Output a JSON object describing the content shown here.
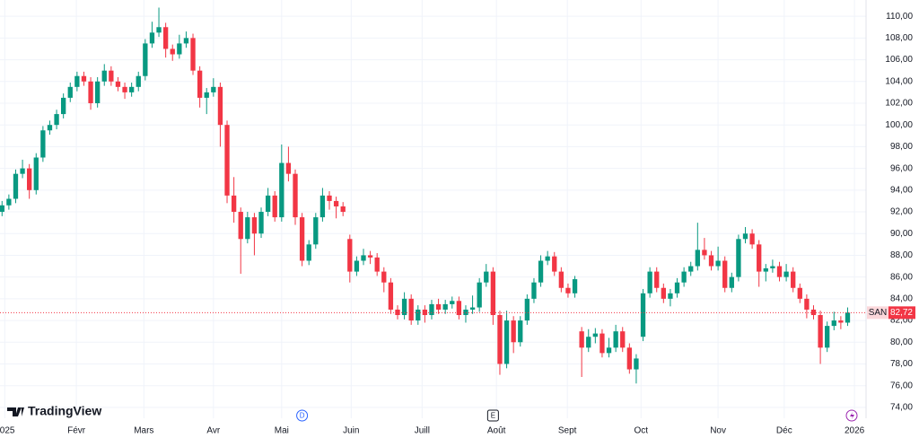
{
  "chart_data": {
    "type": "candlestick",
    "symbol": "SAN",
    "last_price": 82.72,
    "last_price_label": "82,72",
    "up_color": "#089981",
    "down_color": "#f23645",
    "grid": true,
    "xlim": [
      -0.3,
      126.7
    ],
    "ylim": [
      73.0,
      111.5
    ],
    "yticks": [
      {
        "value": 74,
        "label": "74,00"
      },
      {
        "value": 76,
        "label": "76,00"
      },
      {
        "value": 78,
        "label": "78,00"
      },
      {
        "value": 80,
        "label": "80,00"
      },
      {
        "value": 82,
        "label": "82,00"
      },
      {
        "value": 84,
        "label": "84,00"
      },
      {
        "value": 86,
        "label": "86,00"
      },
      {
        "value": 88,
        "label": "88,00"
      },
      {
        "value": 90,
        "label": "90,00"
      },
      {
        "value": 92,
        "label": "92,00"
      },
      {
        "value": 94,
        "label": "94,00"
      },
      {
        "value": 96,
        "label": "96,00"
      },
      {
        "value": 98,
        "label": "98,00"
      },
      {
        "value": 100,
        "label": "100,00"
      },
      {
        "value": 102,
        "label": "102,00"
      },
      {
        "value": 104,
        "label": "104,00"
      },
      {
        "value": 106,
        "label": "106,00"
      },
      {
        "value": 108,
        "label": "108,00"
      },
      {
        "value": 110,
        "label": "110,00"
      }
    ],
    "xticks": [
      {
        "value": 0.4,
        "label": "2025"
      },
      {
        "value": 10.9,
        "label": "Févr"
      },
      {
        "value": 20.8,
        "label": "Mars"
      },
      {
        "value": 31,
        "label": "Avr"
      },
      {
        "value": 41,
        "label": "Mai"
      },
      {
        "value": 51.2,
        "label": "Juin"
      },
      {
        "value": 61.6,
        "label": "Juill"
      },
      {
        "value": 72.5,
        "label": "Août"
      },
      {
        "value": 82.9,
        "label": "Sept"
      },
      {
        "value": 93.7,
        "label": "Oct"
      },
      {
        "value": 105,
        "label": "Nov"
      },
      {
        "value": 114.7,
        "label": "Déc"
      },
      {
        "value": 125,
        "label": "2026"
      }
    ],
    "markers": [
      {
        "label": "D",
        "x": 44
      },
      {
        "label": "E",
        "x": 72
      }
    ],
    "open": [
      92.0,
      92.6,
      93.2,
      95.5,
      96.0,
      94.0,
      97.0,
      99.5,
      100.0,
      101.0,
      102.5,
      103.5,
      104.5,
      104.0,
      102.0,
      104.0,
      105.0,
      104.0,
      103.5,
      103.0,
      103.5,
      104.5,
      107.5,
      108.5,
      109.0,
      107.0,
      106.5,
      107.5,
      108.0,
      105.0,
      102.5,
      103.0,
      103.5,
      100.0,
      93.5,
      92.0,
      89.5,
      91.5,
      90.0,
      92.0,
      93.5,
      91.5,
      96.5,
      95.5,
      91.5,
      87.5,
      89.0,
      91.5,
      93.5,
      93.0,
      92.5,
      89.5,
      86.5,
      87.5,
      88.0,
      87.8,
      86.5,
      85.5,
      83.0,
      82.5,
      84.0,
      82.0,
      83.0,
      82.5,
      83.5,
      83.0,
      83.5,
      83.8,
      82.5,
      83.0,
      83.2,
      85.5,
      86.5,
      82.5,
      78.0,
      82.0,
      80.0,
      82.0,
      84.0,
      85.5,
      87.5,
      87.9,
      86.5,
      85.0,
      84.5,
      81.0,
      79.5,
      80.5,
      80.8,
      79.0,
      79.5,
      81.0,
      79.5,
      77.5,
      80.5,
      84.5,
      86.5,
      85.0,
      84.0,
      84.5,
      85.5,
      86.5,
      87.0,
      88.5,
      88.0,
      87.0,
      87.5,
      85.0,
      86.0,
      89.5,
      90.0,
      89.0,
      86.5,
      86.8,
      87.0,
      86.0,
      86.5,
      85.0,
      84.0,
      83.0,
      82.5,
      79.5,
      81.5,
      82.0,
      81.8
    ],
    "high": [
      93.0,
      93.6,
      95.9,
      96.8,
      96.4,
      97.4,
      99.9,
      100.4,
      101.4,
      102.9,
      103.9,
      104.9,
      104.9,
      104.4,
      104.4,
      105.6,
      105.4,
      104.4,
      103.9,
      103.9,
      104.9,
      107.9,
      109.5,
      110.8,
      109.4,
      107.4,
      108.3,
      108.6,
      108.4,
      105.4,
      103.4,
      104.3,
      103.9,
      100.4,
      95.2,
      92.4,
      92.0,
      91.9,
      92.4,
      94.2,
      93.9,
      98.2,
      98.0,
      95.9,
      91.9,
      89.4,
      91.9,
      94.2,
      93.9,
      93.4,
      92.9,
      89.9,
      87.9,
      88.6,
      88.4,
      88.2,
      86.9,
      85.9,
      83.4,
      84.6,
      84.4,
      83.4,
      83.4,
      83.9,
      84.0,
      83.9,
      84.2,
      84.2,
      83.4,
      84.3,
      85.9,
      87.2,
      86.9,
      82.9,
      82.9,
      82.4,
      82.4,
      84.4,
      85.9,
      88.0,
      88.4,
      88.3,
      86.9,
      85.4,
      86.1,
      81.4,
      81.2,
      81.3,
      81.2,
      80.4,
      81.6,
      81.4,
      79.9,
      78.9,
      84.9,
      86.9,
      86.9,
      85.4,
      84.9,
      85.9,
      86.9,
      87.4,
      91.0,
      89.6,
      88.4,
      88.8,
      87.9,
      86.4,
      89.9,
      90.6,
      90.4,
      89.4,
      87.2,
      87.6,
      87.4,
      87.2,
      86.9,
      85.4,
      84.4,
      83.4,
      82.9,
      81.9,
      82.8,
      82.4,
      83.2
    ],
    "low": [
      91.6,
      92.2,
      92.8,
      95.1,
      93.2,
      93.6,
      96.6,
      99.1,
      99.6,
      100.6,
      102.1,
      103.1,
      103.6,
      101.4,
      101.6,
      103.6,
      103.6,
      103.1,
      102.4,
      102.6,
      103.1,
      104.1,
      107.1,
      108.1,
      106.2,
      105.9,
      106.1,
      107.1,
      104.6,
      101.6,
      101.0,
      102.6,
      98.0,
      92.8,
      91.0,
      86.3,
      89.1,
      88.0,
      89.6,
      91.6,
      91.1,
      91.1,
      94.8,
      90.8,
      87.0,
      87.1,
      88.6,
      91.1,
      92.2,
      91.4,
      91.6,
      85.5,
      86.1,
      87.1,
      87.2,
      86.1,
      84.6,
      82.6,
      82.1,
      82.1,
      81.6,
      81.6,
      81.8,
      82.1,
      82.6,
      82.6,
      83.1,
      82.1,
      81.8,
      82.6,
      82.8,
      85.1,
      81.6,
      77.0,
      77.6,
      79.0,
      79.6,
      81.6,
      83.6,
      85.1,
      87.1,
      86.1,
      84.6,
      84.1,
      84.1,
      76.8,
      79.1,
      79.9,
      78.6,
      78.6,
      79.1,
      79.1,
      77.1,
      76.2,
      80.1,
      84.1,
      84.6,
      83.6,
      83.3,
      84.1,
      85.1,
      86.1,
      86.6,
      87.6,
      86.6,
      86.6,
      84.6,
      84.6,
      85.6,
      89.1,
      88.6,
      85.1,
      85.6,
      86.4,
      85.6,
      85.6,
      84.6,
      83.6,
      82.2,
      82.1,
      78.0,
      79.1,
      81.1,
      81.2,
      81.5
    ],
    "close": [
      92.6,
      93.2,
      95.5,
      96.0,
      94.0,
      97.0,
      99.5,
      100.0,
      101.0,
      102.5,
      103.5,
      104.5,
      104.0,
      102.0,
      104.0,
      105.0,
      104.0,
      103.5,
      103.0,
      103.5,
      104.5,
      107.5,
      108.5,
      109.0,
      107.0,
      106.5,
      107.5,
      108.0,
      105.0,
      102.5,
      103.0,
      103.5,
      100.0,
      93.5,
      92.0,
      89.5,
      91.5,
      90.0,
      92.0,
      93.5,
      91.5,
      96.5,
      95.5,
      91.5,
      87.5,
      89.0,
      91.5,
      93.5,
      93.0,
      92.5,
      92.0,
      86.5,
      87.5,
      88.0,
      87.8,
      86.5,
      85.5,
      83.0,
      82.5,
      84.0,
      82.0,
      83.0,
      82.5,
      83.5,
      83.0,
      83.5,
      83.8,
      82.5,
      83.0,
      83.2,
      85.5,
      86.5,
      82.5,
      78.0,
      82.0,
      80.0,
      82.0,
      84.0,
      85.5,
      87.5,
      87.9,
      86.5,
      85.0,
      84.5,
      85.8,
      79.5,
      80.5,
      80.8,
      79.0,
      79.5,
      81.0,
      79.5,
      77.5,
      78.5,
      84.5,
      86.5,
      85.0,
      84.0,
      84.5,
      85.5,
      86.5,
      87.0,
      88.5,
      88.0,
      87.0,
      87.5,
      85.0,
      86.0,
      89.5,
      90.0,
      89.0,
      86.5,
      86.8,
      87.0,
      86.0,
      86.5,
      85.0,
      84.0,
      83.0,
      82.5,
      79.5,
      81.5,
      82.0,
      81.8,
      82.72
    ]
  },
  "watermark": "TradingView"
}
